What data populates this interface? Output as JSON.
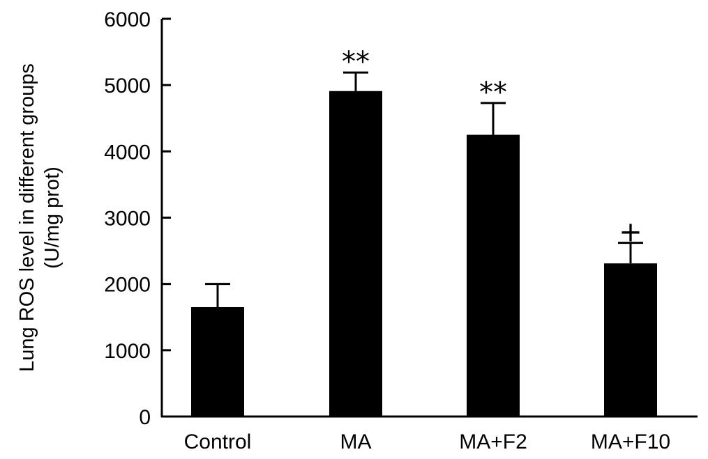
{
  "chart_data": {
    "type": "bar",
    "categories": [
      "Control",
      "MA",
      "MA+F2",
      "MA+F10"
    ],
    "values": [
      1650,
      4910,
      4250,
      2310
    ],
    "errors": [
      350,
      280,
      480,
      310
    ],
    "annotations": [
      "",
      "**",
      "**",
      "+"
    ],
    "ylabel": [
      "Lung ROS level in different groups",
      "(U/mg prot)"
    ],
    "ylim": [
      0,
      6000
    ],
    "yticks": [
      0,
      1000,
      2000,
      3000,
      4000,
      5000,
      6000
    ],
    "bar_color": "#000000",
    "grid": false
  }
}
